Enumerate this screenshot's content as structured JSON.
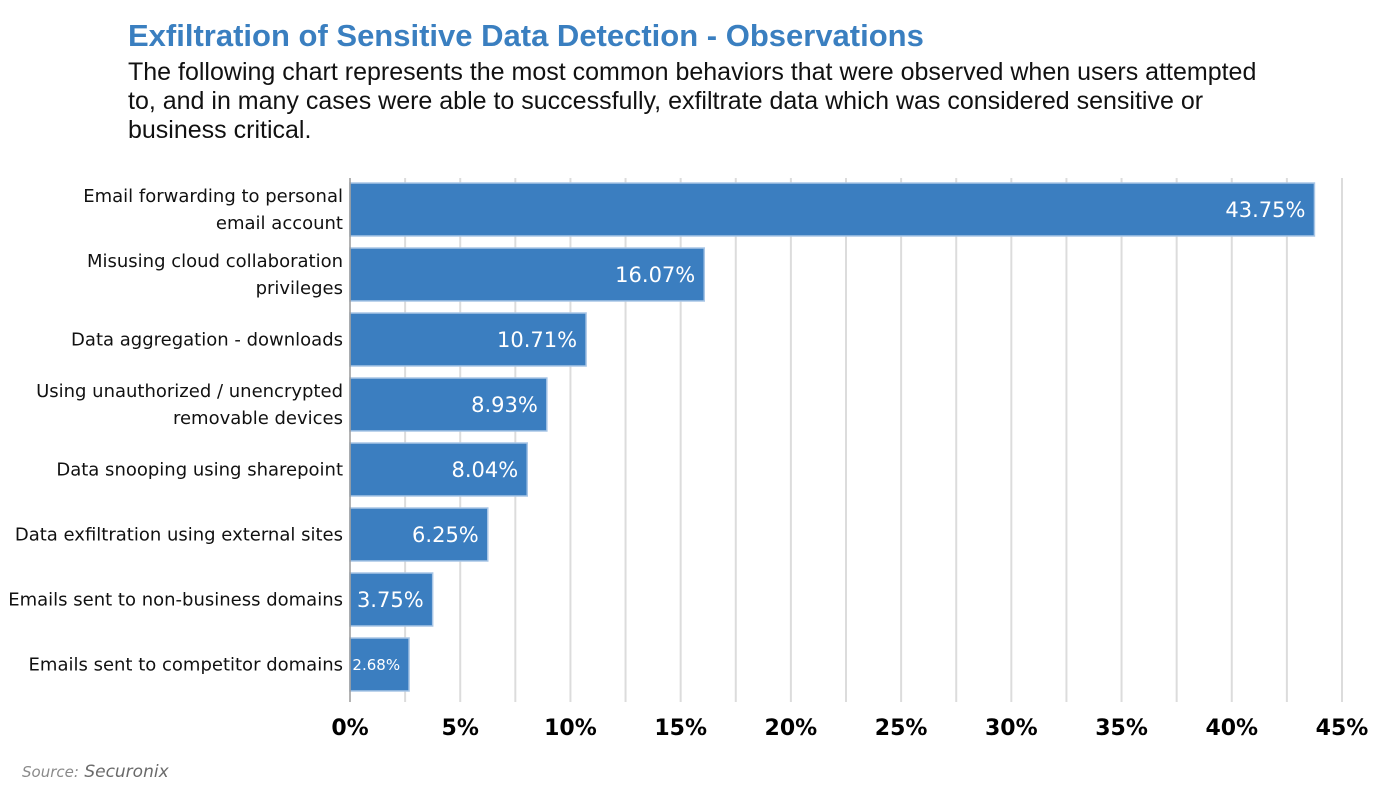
{
  "header": {
    "title": "Exfiltration of Sensitive Data Detection - Observations",
    "subtitle": "The following chart represents the most common behaviors that were observed when users attempted to, and in many cases were able to successfully, exfiltrate data which was considered sensitive or business critical."
  },
  "footer": {
    "source_label": "Source:",
    "source_name": "Securonix"
  },
  "chart_data": {
    "type": "bar",
    "orientation": "horizontal",
    "categories": [
      [
        "Email forwarding to personal",
        "email account"
      ],
      [
        "Misusing cloud collaboration",
        "privileges"
      ],
      [
        "Data aggregation - downloads"
      ],
      [
        "Using unauthorized / unencrypted",
        "removable devices"
      ],
      [
        "Data snooping using sharepoint"
      ],
      [
        "Data exfiltration using external sites"
      ],
      [
        "Emails sent to non-business domains"
      ],
      [
        "Emails sent to competitor domains"
      ]
    ],
    "values": [
      43.75,
      16.07,
      10.71,
      8.93,
      8.04,
      6.25,
      3.75,
      2.68
    ],
    "data_labels": [
      "43.75%",
      "16.07%",
      "10.71%",
      "8.93%",
      "8.04%",
      "6.25%",
      "3.75%",
      "2.68%"
    ],
    "xlim": [
      0,
      45
    ],
    "xticks": [
      0,
      5,
      10,
      15,
      20,
      25,
      30,
      35,
      40,
      45
    ],
    "xtick_labels": [
      "0%",
      "5%",
      "10%",
      "15%",
      "20%",
      "25%",
      "30%",
      "35%",
      "40%",
      "45%"
    ],
    "grid": true,
    "legend": "none",
    "colors": {
      "bar": "#3b7ec0",
      "bar_edge": "#a9c6e6",
      "grid": "#dcdcdc",
      "title": "#3a7fc0"
    }
  }
}
